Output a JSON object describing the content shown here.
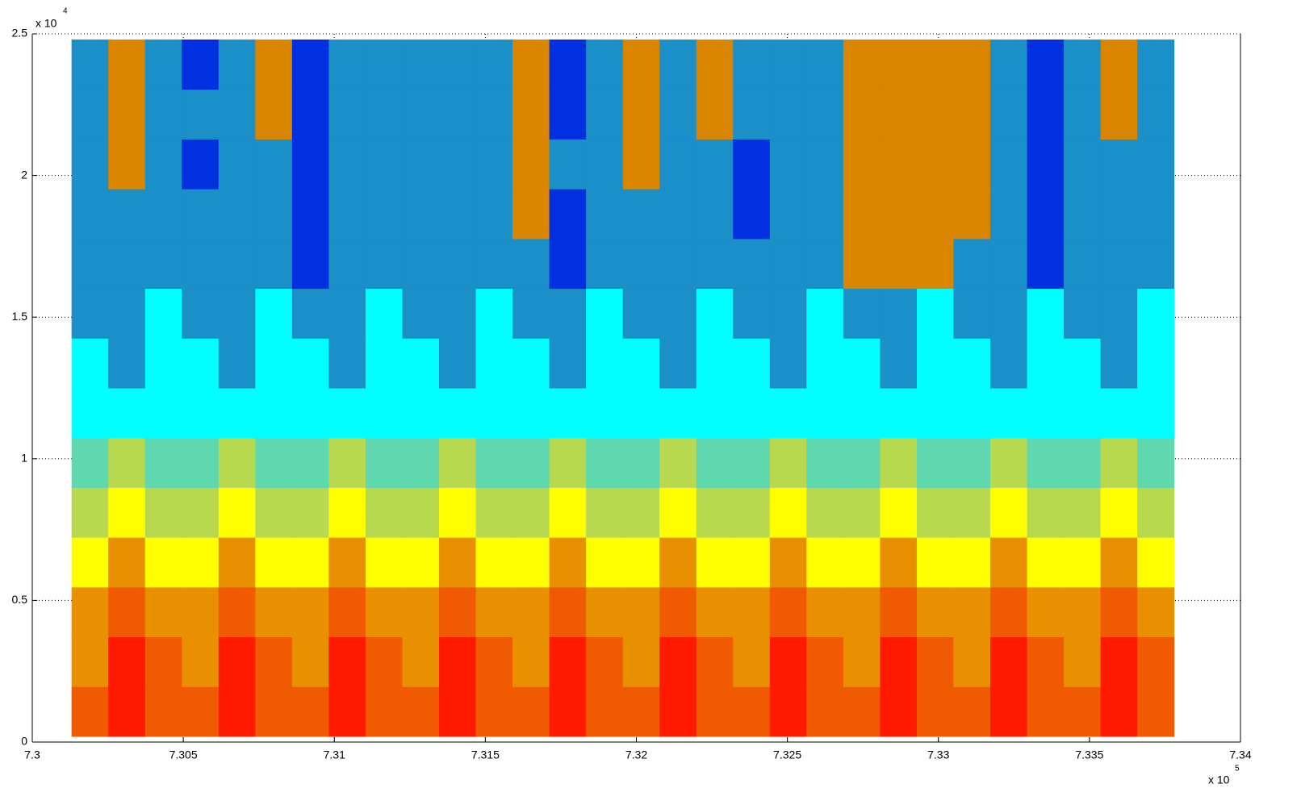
{
  "chart_data": {
    "type": "heatmap",
    "xlim": [
      7.3,
      7.34
    ],
    "xticks": [
      7.3,
      7.305,
      7.31,
      7.315,
      7.32,
      7.325,
      7.33,
      7.335,
      7.34
    ],
    "ylim": [
      0,
      2.5
    ],
    "yticks": [
      0,
      0.5,
      1,
      1.5,
      2,
      2.5
    ],
    "x_multiplier": {
      "base": "x 10",
      "exponent": "5"
    },
    "y_multiplier": {
      "base": "x 10",
      "exponent": "4"
    },
    "grid": true,
    "x_extent": [
      7.3013,
      7.3378
    ],
    "y_extent": [
      0.02,
      2.48
    ],
    "colormap": [
      "#ff1a00",
      "#f05a00",
      "#e89000",
      "#ffff00",
      "#b8d850",
      "#5fd8b0",
      "#00ffff",
      "#1a8fc8",
      "#0030e0",
      "#d98500"
    ],
    "z": [
      [
        1,
        0,
        1,
        1,
        0,
        1,
        1,
        0,
        1,
        1,
        0,
        1,
        1,
        0,
        1,
        1,
        0,
        1,
        1,
        0,
        1,
        1,
        0,
        1,
        1,
        0,
        1,
        1,
        0,
        1
      ],
      [
        2,
        0,
        1,
        2,
        0,
        1,
        2,
        0,
        1,
        2,
        0,
        1,
        2,
        0,
        1,
        2,
        0,
        1,
        2,
        0,
        1,
        2,
        0,
        1,
        2,
        0,
        1,
        2,
        0,
        1
      ],
      [
        2,
        1,
        2,
        2,
        1,
        2,
        2,
        1,
        2,
        2,
        1,
        2,
        2,
        1,
        2,
        2,
        1,
        2,
        2,
        1,
        2,
        2,
        1,
        2,
        2,
        1,
        2,
        2,
        1,
        2
      ],
      [
        3,
        2,
        3,
        3,
        2,
        3,
        3,
        2,
        3,
        3,
        2,
        3,
        3,
        2,
        3,
        3,
        2,
        3,
        3,
        2,
        3,
        3,
        2,
        3,
        3,
        2,
        3,
        3,
        2,
        3
      ],
      [
        4,
        3,
        4,
        4,
        3,
        4,
        4,
        3,
        4,
        4,
        3,
        4,
        4,
        3,
        4,
        4,
        3,
        4,
        4,
        3,
        4,
        4,
        3,
        4,
        4,
        3,
        4,
        4,
        3,
        4
      ],
      [
        5,
        4,
        5,
        5,
        4,
        5,
        5,
        4,
        5,
        5,
        4,
        5,
        5,
        4,
        5,
        5,
        4,
        5,
        5,
        4,
        5,
        5,
        4,
        5,
        5,
        4,
        5,
        5,
        4,
        5
      ],
      [
        6,
        6,
        6,
        6,
        6,
        6,
        6,
        6,
        6,
        6,
        6,
        6,
        6,
        6,
        6,
        6,
        6,
        6,
        6,
        6,
        6,
        6,
        6,
        6,
        6,
        6,
        6,
        6,
        6,
        6
      ],
      [
        6,
        7,
        6,
        6,
        7,
        6,
        6,
        7,
        6,
        6,
        7,
        6,
        6,
        7,
        6,
        6,
        7,
        6,
        6,
        7,
        6,
        6,
        7,
        6,
        6,
        7,
        6,
        6,
        7,
        6
      ],
      [
        7,
        7,
        6,
        7,
        7,
        6,
        7,
        7,
        6,
        7,
        7,
        6,
        7,
        7,
        6,
        7,
        7,
        6,
        7,
        7,
        6,
        7,
        7,
        6,
        7,
        7,
        6,
        7,
        7,
        6
      ],
      [
        7,
        7,
        7,
        7,
        7,
        7,
        8,
        7,
        7,
        7,
        7,
        7,
        7,
        8,
        7,
        7,
        7,
        7,
        7,
        7,
        7,
        9,
        9,
        9,
        7,
        7,
        8,
        7,
        7,
        7
      ],
      [
        7,
        7,
        7,
        7,
        7,
        7,
        8,
        7,
        7,
        7,
        7,
        7,
        9,
        8,
        7,
        7,
        7,
        7,
        8,
        7,
        7,
        9,
        9,
        9,
        9,
        7,
        8,
        7,
        7,
        7
      ],
      [
        7,
        9,
        7,
        8,
        7,
        7,
        8,
        7,
        7,
        7,
        7,
        7,
        9,
        7,
        7,
        9,
        7,
        7,
        8,
        7,
        7,
        9,
        9,
        9,
        9,
        7,
        8,
        7,
        7,
        7
      ],
      [
        7,
        9,
        7,
        7,
        7,
        9,
        8,
        7,
        7,
        7,
        7,
        7,
        9,
        8,
        7,
        9,
        7,
        9,
        7,
        7,
        7,
        9,
        9,
        9,
        9,
        7,
        8,
        7,
        9,
        7
      ],
      [
        7,
        9,
        7,
        8,
        7,
        9,
        8,
        7,
        7,
        7,
        7,
        7,
        9,
        8,
        7,
        9,
        7,
        9,
        7,
        7,
        7,
        9,
        9,
        9,
        9,
        7,
        8,
        7,
        9,
        7
      ]
    ]
  }
}
